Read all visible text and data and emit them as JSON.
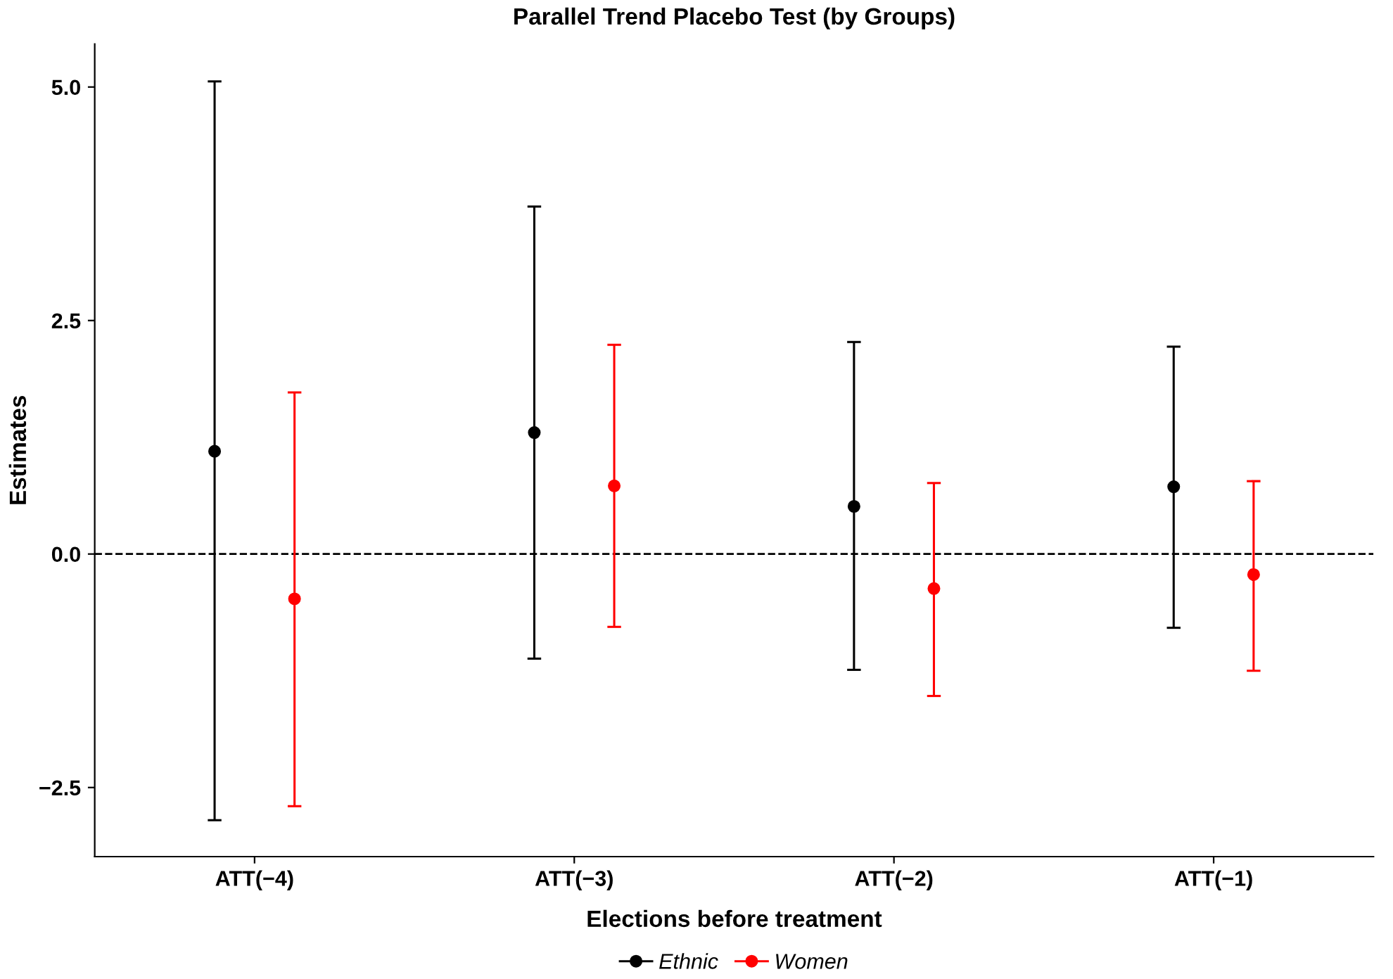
{
  "chart_data": {
    "type": "scatter",
    "title": "Parallel Trend Placebo Test (by Groups)",
    "xlabel": "Elections before treatment",
    "ylabel": "Estimates",
    "categories": [
      "ATT(−4)",
      "ATT(−3)",
      "ATT(−2)",
      "ATT(−1)"
    ],
    "series": [
      {
        "name": "Ethnic",
        "color": "#000000",
        "values": [
          1.1,
          1.3,
          0.51,
          0.72
        ],
        "errors": [
          [
            -2.85,
            5.06
          ],
          [
            -1.12,
            3.72
          ],
          [
            -1.24,
            2.27
          ],
          [
            -0.79,
            2.22
          ]
        ]
      },
      {
        "name": "Women",
        "color": "#ff0000",
        "values": [
          -0.48,
          0.73,
          -0.37,
          -0.22
        ],
        "errors": [
          [
            -2.7,
            1.73
          ],
          [
            -0.78,
            2.24
          ],
          [
            -1.52,
            0.76
          ],
          [
            -1.25,
            0.78
          ]
        ]
      }
    ],
    "ylim": [
      -3.24,
      5.46
    ],
    "yticks": [
      {
        "value": -2.5,
        "label": "−2.5"
      },
      {
        "value": 0,
        "label": "0.0"
      },
      {
        "value": 2.5,
        "label": "2.5"
      },
      {
        "value": 5,
        "label": "5.0"
      }
    ],
    "ref_lines": [
      {
        "axis": "y",
        "value": 0,
        "color": "#000000",
        "line_style": "dashed"
      }
    ],
    "marker": "circle",
    "grid": false,
    "legend": "bottom"
  }
}
